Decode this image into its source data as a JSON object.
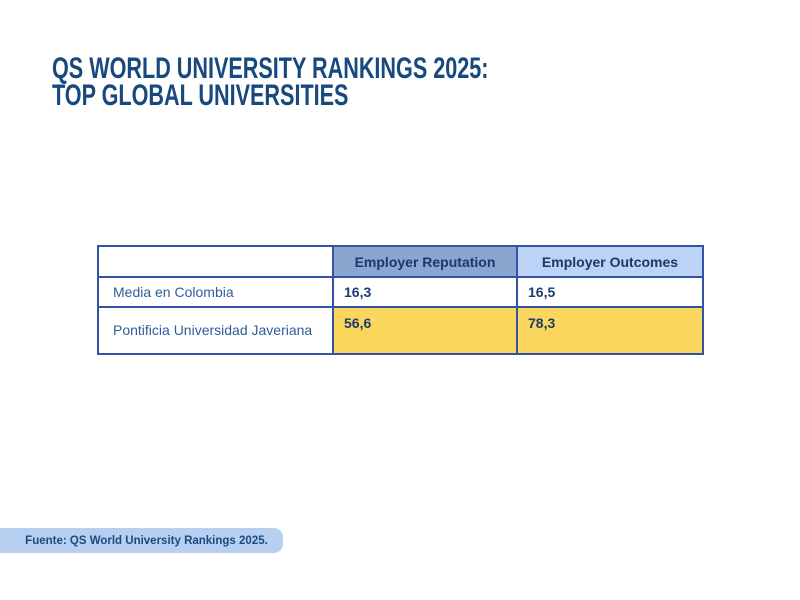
{
  "title": {
    "line1": "QS WORLD UNIVERSITY RANKINGS 2025:",
    "line2": "TOP GLOBAL UNIVERSITIES"
  },
  "chart_data": {
    "type": "table",
    "title": "QS World University Rankings 2025: Top Global Universities",
    "columns": [
      "",
      "Employer Reputation",
      "Employer Outcomes"
    ],
    "rows": [
      {
        "label": "Media en Colombia",
        "values": [
          "16,3",
          "16,5"
        ],
        "highlighted": false
      },
      {
        "label": "Pontificia Universidad Javeriana",
        "values": [
          "56,6",
          "78,3"
        ],
        "highlighted": true
      }
    ]
  },
  "footer": {
    "source_label": "Fuente: QS World University Rankings 2025."
  },
  "colors": {
    "title_text": "#17497E",
    "table_border": "#3354A4",
    "header_reputation_bg": "#8BA5D1",
    "header_outcomes_bg": "#BDD3F5",
    "highlight_yellow": "#FAD75C",
    "row_label_text": "#2E5E99",
    "value_text": "#1B3C6E",
    "footer_bg": "#B7D0F2",
    "footer_text": "#1B4A7D"
  }
}
